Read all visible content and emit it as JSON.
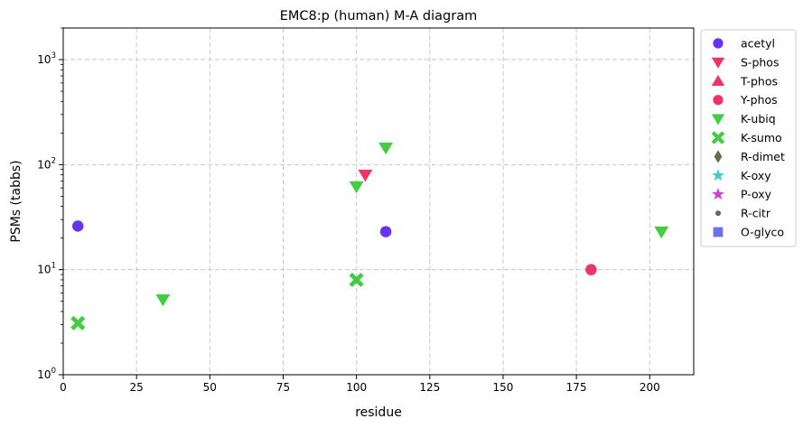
{
  "chart_data": {
    "type": "scatter",
    "title": "EMC8:p (human) M-A diagram",
    "xlabel": "residue",
    "ylabel": "PSMs (tabbs)",
    "xlim": [
      0,
      215
    ],
    "ylim": [
      1,
      2000
    ],
    "yscale": "log",
    "grid": true,
    "legend_position": "outside-right",
    "x_ticks": [
      {
        "value": 0,
        "label": "0"
      },
      {
        "value": 25,
        "label": "25"
      },
      {
        "value": 50,
        "label": "50"
      },
      {
        "value": 75,
        "label": "75"
      },
      {
        "value": 100,
        "label": "100"
      },
      {
        "value": 125,
        "label": "125"
      },
      {
        "value": 150,
        "label": "150"
      },
      {
        "value": 175,
        "label": "175"
      },
      {
        "value": 200,
        "label": "200"
      }
    ],
    "y_ticks": [
      {
        "value": 1,
        "base": "10",
        "exp": "0"
      },
      {
        "value": 10,
        "base": "10",
        "exp": "1"
      },
      {
        "value": 100,
        "base": "10",
        "exp": "2"
      },
      {
        "value": 1000,
        "base": "10",
        "exp": "3"
      }
    ],
    "series": [
      {
        "name": "acetyl",
        "marker": "circle",
        "color": "#6633ee",
        "points": [
          [
            5,
            26
          ],
          [
            110,
            23
          ]
        ]
      },
      {
        "name": "S-phos",
        "marker": "triangle-down",
        "color": "#ee3366",
        "points": [
          [
            103,
            80
          ]
        ]
      },
      {
        "name": "T-phos",
        "marker": "triangle-up",
        "color": "#ee3366",
        "points": []
      },
      {
        "name": "Y-phos",
        "marker": "circle",
        "color": "#ee3366",
        "points": [
          [
            180,
            10
          ]
        ]
      },
      {
        "name": "K-ubiq",
        "marker": "triangle-down",
        "color": "#44cc44",
        "points": [
          [
            34,
            5.2
          ],
          [
            100,
            62
          ],
          [
            110,
            145
          ],
          [
            204,
            23
          ]
        ]
      },
      {
        "name": "K-sumo",
        "marker": "x-thick",
        "color": "#44cc44",
        "points": [
          [
            5,
            3.1
          ],
          [
            100,
            8
          ]
        ]
      },
      {
        "name": "R-dimet",
        "marker": "diamond-thin",
        "color": "#6b6b45",
        "points": []
      },
      {
        "name": "K-oxy",
        "marker": "star",
        "color": "#44cccc",
        "points": []
      },
      {
        "name": "P-oxy",
        "marker": "star",
        "color": "#cc44cc",
        "points": []
      },
      {
        "name": "R-citr",
        "marker": "dot",
        "color": "#666666",
        "points": []
      },
      {
        "name": "O-glyco",
        "marker": "square",
        "color": "#6f6fe8",
        "points": []
      }
    ]
  }
}
